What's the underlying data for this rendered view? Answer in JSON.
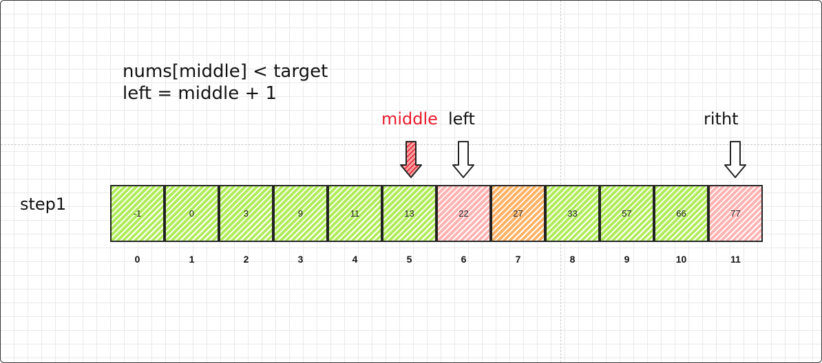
{
  "title": {
    "line1": "nums[middle] < target",
    "line2": "left = middle + 1"
  },
  "step_label": "step1",
  "pointers": {
    "middle": {
      "label": "middle",
      "index": 5,
      "color": "#e8192c"
    },
    "left": {
      "label": "left",
      "index": 6,
      "color": "#111111"
    },
    "right": {
      "label": "ritht",
      "index": 11,
      "color": "#111111"
    }
  },
  "array": {
    "values": [
      "-1",
      "0",
      "3",
      "9",
      "11",
      "13",
      "22",
      "27",
      "33",
      "57",
      "66",
      "77"
    ],
    "indices": [
      "0",
      "1",
      "2",
      "3",
      "4",
      "5",
      "6",
      "7",
      "8",
      "9",
      "10",
      "11"
    ],
    "fills": [
      "green",
      "green",
      "green",
      "green",
      "green",
      "green",
      "pink",
      "orange",
      "green",
      "green",
      "green",
      "pink"
    ]
  },
  "colors": {
    "green": "#b2ec5d",
    "pink": "#ffb3b3",
    "orange": "#ffb366"
  }
}
